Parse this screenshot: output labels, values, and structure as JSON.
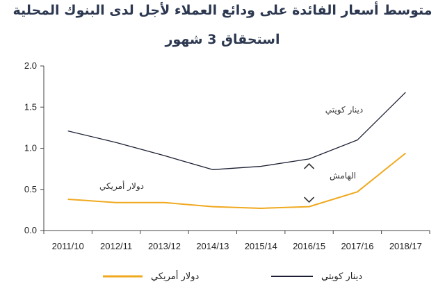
{
  "chart_data": {
    "type": "line",
    "title": "متوسط أسعار الفائدة على ودائع العملاء لأجل لدى البنوك المحلية",
    "subtitle": "استحقاق 3 شهور",
    "categories": [
      "2011/10",
      "2012/11",
      "2013/12",
      "2014/13",
      "2015/14",
      "2016/15",
      "2017/16",
      "2018/17"
    ],
    "series": [
      {
        "name": "دينار كويتي",
        "color": "#1c1f33",
        "values": [
          1.21,
          1.07,
          0.91,
          0.74,
          0.78,
          0.87,
          1.1,
          1.68
        ]
      },
      {
        "name": "دولار أمريكي",
        "color": "#f0a91e",
        "values": [
          0.38,
          0.34,
          0.34,
          0.29,
          0.27,
          0.29,
          0.47,
          0.94
        ]
      }
    ],
    "ylim": [
      0,
      2
    ],
    "yticks": [
      "0.0",
      "0.5",
      "1.0",
      "1.5",
      "2.0"
    ],
    "annotations": {
      "kwd_label": "دينار كويتي",
      "usd_label": "دولار أمريكي",
      "margin_label": "الهامش"
    },
    "legend": {
      "placement": "bottom"
    }
  }
}
